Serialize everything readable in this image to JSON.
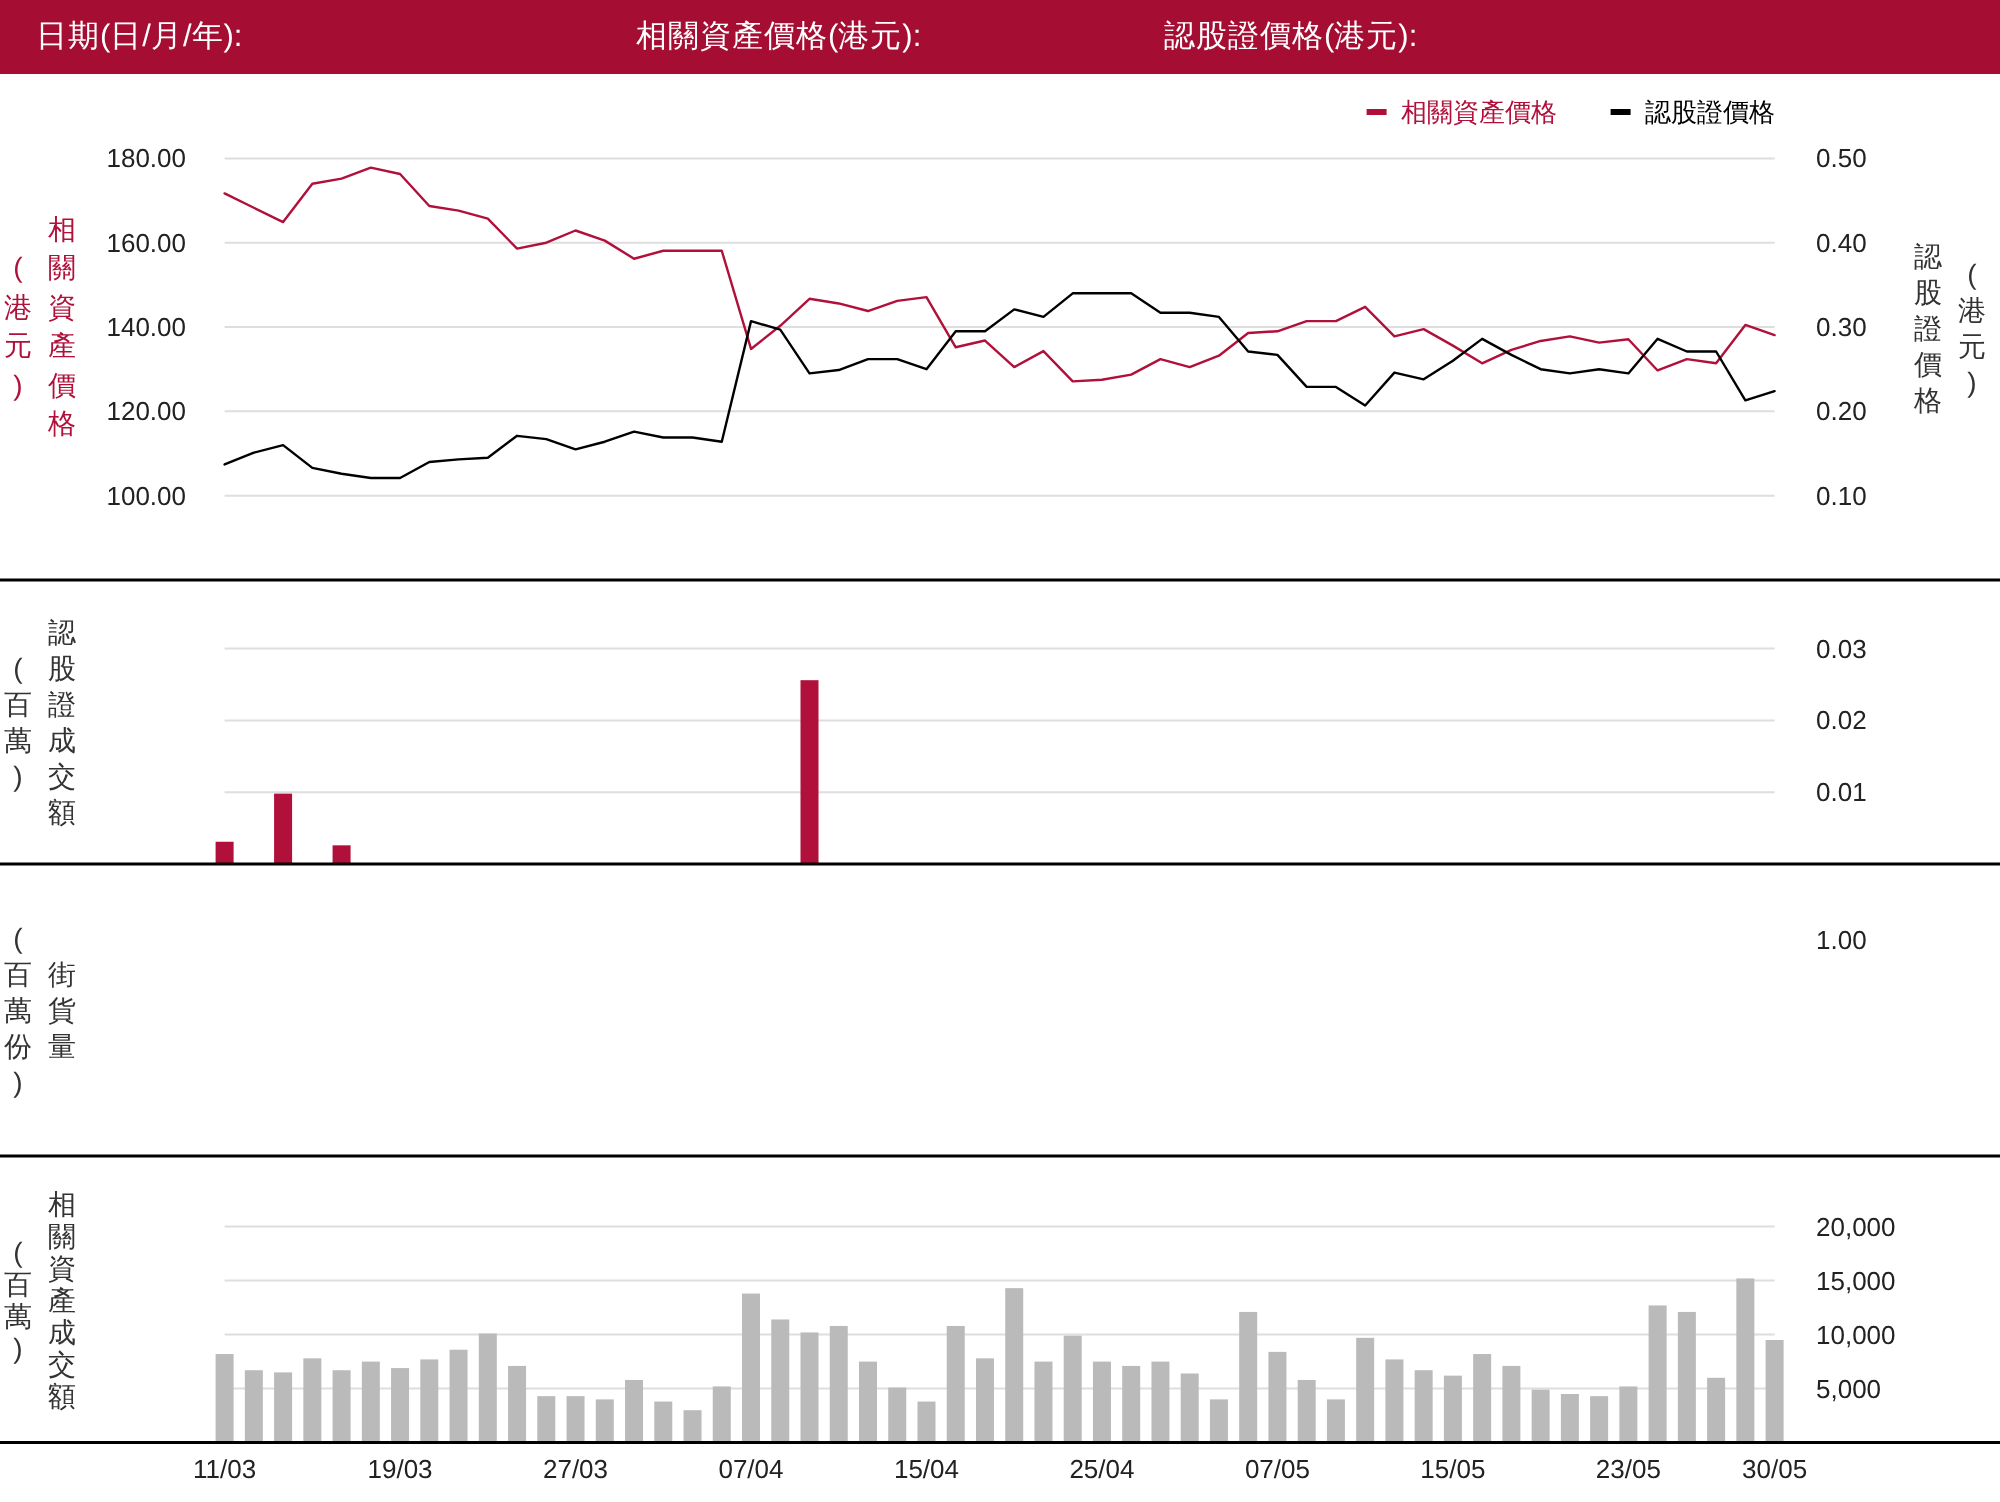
{
  "chart_data": [
    {
      "type": "line",
      "annotations": [
        "日期(日/月/年):",
        "相關資產價格(港元):",
        "認股證價格(港元):"
      ],
      "categories": [
        null,
        null,
        null,
        null,
        null,
        null,
        null,
        null,
        null,
        null,
        null,
        null,
        null,
        null,
        null,
        null,
        null,
        null,
        null,
        null,
        null,
        null,
        null,
        null,
        null,
        null,
        null,
        null,
        null,
        null,
        null,
        null,
        null,
        null,
        null,
        null,
        null,
        null,
        null,
        null,
        null,
        null,
        null,
        null,
        null,
        null,
        null,
        null,
        null,
        null,
        null,
        null,
        null,
        null
      ],
      "series": [
        {
          "name": "相關資產價格",
          "color": "#b0103a",
          "values": [
            171.7,
            168.3,
            164.9,
            174.0,
            175.2,
            177.8,
            176.3,
            168.7,
            167.6,
            165.7,
            158.6,
            160.0,
            162.9,
            160.5,
            156.2,
            158.1,
            158.1,
            158.1,
            134.8,
            140.3,
            146.7,
            145.6,
            143.8,
            146.2,
            147.1,
            135.2,
            136.8,
            130.5,
            134.3,
            127.1,
            127.5,
            128.7,
            132.4,
            130.5,
            133.2,
            138.6,
            139.0,
            141.4,
            141.4,
            144.8,
            137.8,
            139.5,
            135.6,
            131.4,
            134.6,
            136.7,
            137.8,
            136.3,
            137.1,
            129.7,
            132.4,
            131.4,
            140.5,
            138.1
          ]
        },
        {
          "name": "認股證價格",
          "color": "#000000",
          "axis": "y2",
          "values": [
            0.137,
            0.151,
            0.16,
            0.133,
            0.126,
            0.121,
            0.121,
            0.14,
            0.143,
            0.145,
            0.171,
            0.167,
            0.155,
            0.164,
            0.176,
            0.169,
            0.169,
            0.164,
            0.307,
            0.297,
            0.245,
            0.249,
            0.262,
            0.262,
            0.25,
            0.295,
            0.295,
            0.321,
            0.312,
            0.34,
            0.34,
            0.34,
            0.317,
            0.317,
            0.312,
            0.271,
            0.267,
            0.229,
            0.229,
            0.207,
            0.246,
            0.238,
            0.26,
            0.286,
            0.267,
            0.25,
            0.245,
            0.25,
            0.245,
            0.286,
            0.271,
            0.271,
            0.213,
            0.224
          ]
        }
      ],
      "ylim": [
        80,
        180
      ],
      "yticks": [
        {
          "value": 100,
          "label": "100.00"
        },
        {
          "value": 120,
          "label": "120.00"
        },
        {
          "value": 140,
          "label": "140.00"
        },
        {
          "value": 160,
          "label": "160.00"
        },
        {
          "value": 180,
          "label": "180.00"
        }
      ],
      "y2lim": [
        0,
        0.5
      ],
      "y2ticks": [
        {
          "value": 0.1,
          "label": "0.10"
        },
        {
          "value": 0.2,
          "label": "0.20"
        },
        {
          "value": 0.3,
          "label": "0.30"
        },
        {
          "value": 0.4,
          "label": "0.40"
        },
        {
          "value": 0.5,
          "label": "0.50"
        }
      ],
      "ylabel": "相關資產價格(港元)",
      "y2label": "認股證價格(港元)",
      "grid": "y",
      "legend": "top right",
      "tick_labels": "y"
    },
    {
      "type": "bar",
      "categories": [
        null,
        null,
        null,
        null,
        null,
        null,
        null,
        null,
        null,
        null,
        null,
        null,
        null,
        null,
        null,
        null,
        null,
        null,
        null,
        null,
        null,
        null,
        null,
        null,
        null,
        null,
        null,
        null,
        null,
        null,
        null,
        null,
        null,
        null,
        null,
        null,
        null,
        null,
        null,
        null,
        null,
        null,
        null,
        null,
        null,
        null,
        null,
        null,
        null,
        null,
        null,
        null,
        null,
        null
      ],
      "values": [
        0.0031,
        null,
        0.0098,
        null,
        0.0026,
        null,
        null,
        null,
        null,
        null,
        null,
        null,
        null,
        null,
        null,
        null,
        null,
        null,
        null,
        null,
        0.0256,
        null,
        null,
        null,
        null,
        null,
        null,
        null,
        null,
        null,
        null,
        null,
        null,
        null,
        null,
        null,
        null,
        null,
        null,
        null,
        null,
        null,
        null,
        null,
        null,
        null,
        null,
        null,
        null,
        null,
        null,
        null,
        null,
        null
      ],
      "color": "#b0103a",
      "ylim": [
        0,
        0.03
      ],
      "yticks": [
        0.01,
        0.02,
        0.03
      ],
      "ylabel": "認股證成交額(百萬)",
      "grid": "y",
      "tick_labels": "y"
    },
    {
      "type": "other",
      "ylabel": "街貨量(百萬份)",
      "annotations": [
        "1.00"
      ]
    },
    {
      "type": "bar",
      "categories": [
        "11/03",
        null,
        null,
        null,
        null,
        null,
        "19/03",
        null,
        null,
        null,
        null,
        null,
        "27/03",
        null,
        null,
        null,
        null,
        null,
        "07/04",
        null,
        null,
        null,
        null,
        null,
        "15/04",
        null,
        null,
        null,
        null,
        null,
        "25/04",
        null,
        null,
        null,
        null,
        null,
        "07/05",
        null,
        null,
        null,
        null,
        null,
        "15/05",
        null,
        null,
        null,
        null,
        null,
        "23/05",
        null,
        null,
        null,
        null,
        "30/05"
      ],
      "values": [
        8200,
        6700,
        6500,
        7800,
        6700,
        7500,
        6900,
        7700,
        8600,
        10100,
        7100,
        4300,
        4300,
        4000,
        5800,
        3800,
        3000,
        5200,
        13800,
        11400,
        10200,
        10800,
        7500,
        5100,
        3800,
        10800,
        7800,
        14300,
        7500,
        9900,
        7500,
        7100,
        7500,
        6400,
        4000,
        12100,
        8400,
        5800,
        4000,
        9700,
        7700,
        6700,
        6200,
        8200,
        7100,
        4900,
        4500,
        4300,
        5200,
        12700,
        12100,
        6000,
        15200,
        9500
      ],
      "color": "#bababa",
      "ylim": [
        0,
        20000
      ],
      "yticks": [
        {
          "value": 5000,
          "label": "5,000"
        },
        {
          "value": 10000,
          "label": "10,000"
        },
        {
          "value": 15000,
          "label": "15,000"
        },
        {
          "value": 20000,
          "label": "20,000"
        }
      ],
      "ylabel": "相關資產成交額(百萬)",
      "grid": "y"
    }
  ]
}
